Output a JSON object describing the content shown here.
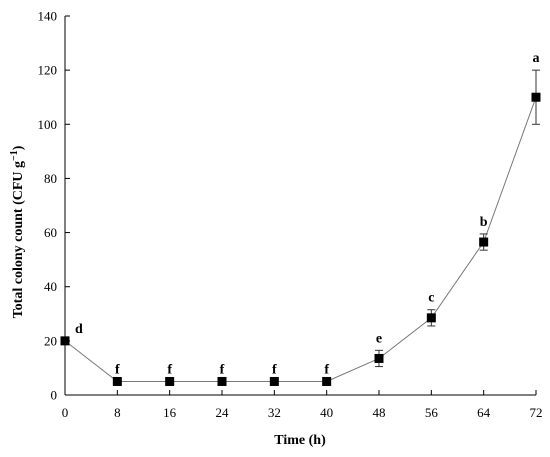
{
  "chart_data": {
    "type": "line",
    "xlabel": "Time (h)",
    "ylabel": {
      "prefix": "Total colony count (CFU g",
      "superscript": "−1",
      "suffix": ")"
    },
    "xlim": [
      0,
      72
    ],
    "ylim": [
      0,
      140
    ],
    "xticks": [
      0,
      8,
      16,
      24,
      32,
      40,
      48,
      56,
      64,
      72
    ],
    "yticks": [
      0,
      20,
      40,
      60,
      80,
      100,
      120,
      140
    ],
    "grid": false,
    "marker": "square",
    "colors": {
      "line": "#777777",
      "marker": "#000000",
      "axis": "#000000"
    },
    "series": [
      {
        "x": [
          0,
          8,
          16,
          24,
          32,
          40,
          48,
          56,
          64,
          72
        ],
        "y": [
          20,
          5,
          5,
          5,
          5,
          5,
          13.5,
          28.5,
          56.5,
          110
        ],
        "error": [
          0,
          0,
          0,
          0,
          0,
          0,
          3,
          3,
          3,
          10
        ],
        "labels": [
          "d",
          "f",
          "f",
          "f",
          "f",
          "f",
          "e",
          "c",
          "b",
          "a"
        ]
      }
    ]
  }
}
